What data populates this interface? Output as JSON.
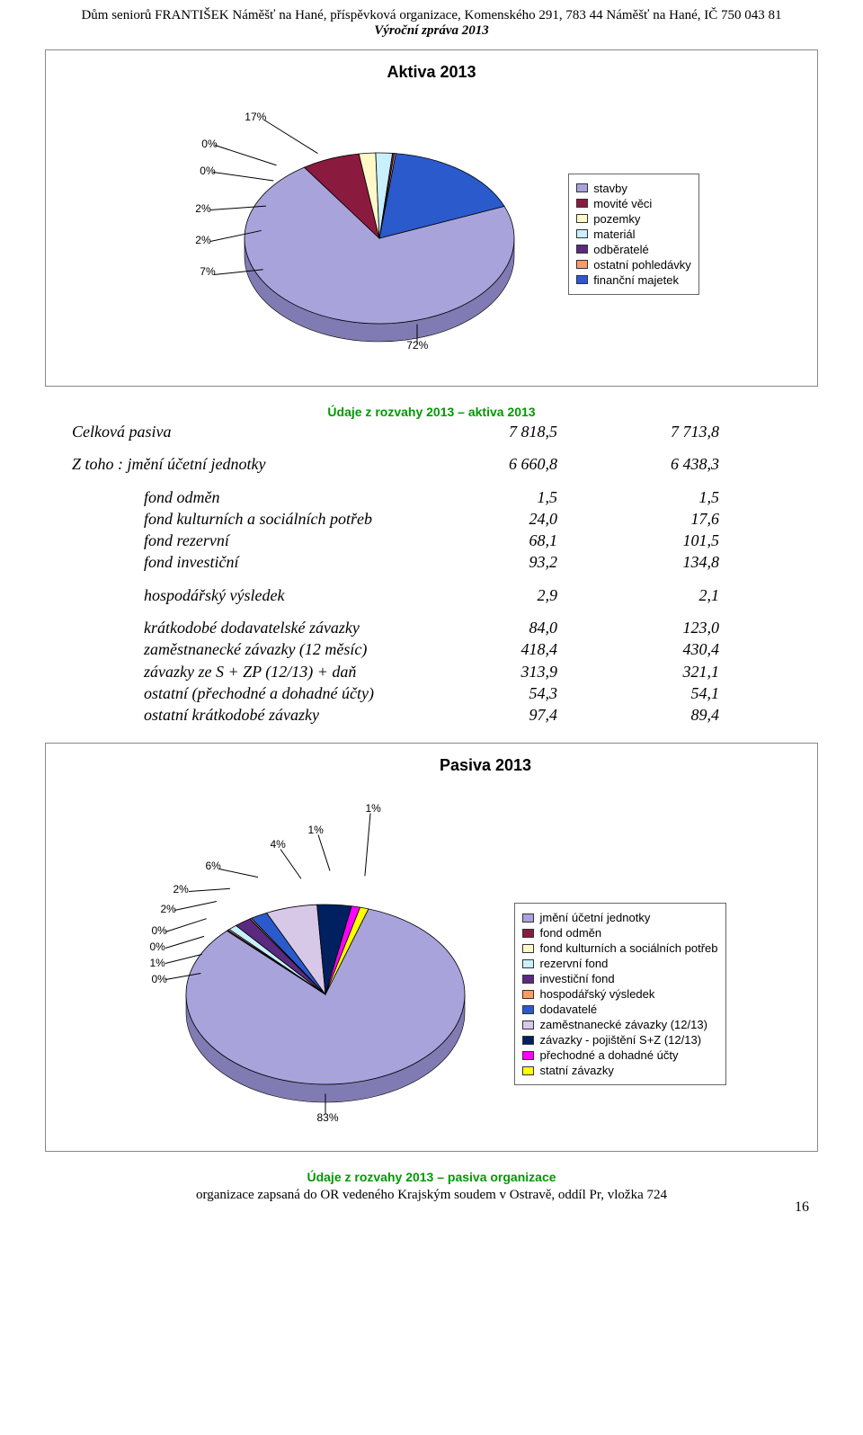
{
  "header": {
    "line1": "Dům seniorů FRANTIŠEK Náměšť na Hané, příspěvková organizace, Komenského 291, 783 44 Náměšť na Hané, IČ 750 043 81",
    "line2": "Výroční zpráva 2013"
  },
  "aktiva_chart": {
    "title": "Aktiva 2013",
    "type": "pie",
    "slices": [
      {
        "label": "stavby",
        "pct": 72,
        "color": "#a9a3db",
        "callout": "72%"
      },
      {
        "label": "movité věci",
        "pct": 7,
        "color": "#8b1a3f",
        "callout": "7%"
      },
      {
        "label": "pozemky",
        "pct": 2,
        "color": "#fff9c8",
        "callout": "2%"
      },
      {
        "label": "materiál",
        "pct": 2,
        "color": "#c8f0ff",
        "callout": "2%"
      },
      {
        "label": "odběratelé",
        "pct": 0,
        "color": "#5a2a80",
        "callout": "0%"
      },
      {
        "label": "ostatní pohledávky",
        "pct": 0,
        "color": "#ff9a66",
        "callout": "0%"
      },
      {
        "label": "finanční majetek",
        "pct": 17,
        "color": "#2a5acc",
        "callout": "17%"
      }
    ],
    "pie_border": "#000000",
    "background": "#ffffff"
  },
  "section_heading_1": "Údaje z rozvahy 2013 – aktiva 2013",
  "table": {
    "rows": [
      {
        "label": "Celková pasiva",
        "v1": "7 818,5",
        "v2": "7 713,8",
        "italic": true
      },
      {
        "label": "Z toho :      jmění účetní jednotky",
        "v1": "6 660,8",
        "v2": "6 438,3",
        "italic": true,
        "gap": true
      },
      {
        "label": "fond odměn",
        "v1": "1,5",
        "v2": "1,5",
        "italic": true,
        "indent": true,
        "gap": true
      },
      {
        "label": "fond kulturních a sociálních potřeb",
        "v1": "24,0",
        "v2": "17,6",
        "italic": true,
        "indent": true
      },
      {
        "label": "fond rezervní",
        "v1": "68,1",
        "v2": "101,5",
        "italic": true,
        "indent": true
      },
      {
        "label": "fond investiční",
        "v1": "93,2",
        "v2": "134,8",
        "italic": true,
        "indent": true
      },
      {
        "label": "hospodářský výsledek",
        "v1": "2,9",
        "v2": "2,1",
        "italic": true,
        "indent": true,
        "gap": true
      },
      {
        "label": "krátkodobé dodavatelské  závazky",
        "v1": "84,0",
        "v2": "123,0",
        "italic": true,
        "indent": true,
        "gap": true
      },
      {
        "label": "zaměstnanecké závazky  (12 měsíc)",
        "v1": "418,4",
        "v2": "430,4",
        "italic": true,
        "indent": true
      },
      {
        "label": "závazky ze S + ZP (12/13) + daň",
        "v1": "313,9",
        "v2": "321,1",
        "italic": true,
        "indent": true
      },
      {
        "label": "ostatní (přechodné a dohadné účty)",
        "v1": "54,3",
        "v2": "54,1",
        "italic": true,
        "indent": true
      },
      {
        "label": "ostatní krátkodobé závazky",
        "v1": "97,4",
        "v2": "89,4",
        "italic": true,
        "indent": true
      }
    ]
  },
  "pasiva_chart": {
    "title": "Pasiva 2013",
    "type": "pie",
    "slices": [
      {
        "label": "jmění účetní jednotky",
        "pct": 83,
        "color": "#a9a3db",
        "callout": "83%"
      },
      {
        "label": "fond odměn",
        "pct": 0,
        "color": "#8b1a3f",
        "callout": "0%"
      },
      {
        "label": "fond kulturních a sociálních potřeb",
        "pct": 0,
        "color": "#fff9c8",
        "callout": "0%"
      },
      {
        "label": "rezervní fond",
        "pct": 1,
        "color": "#c8f0ff",
        "callout": "1%"
      },
      {
        "label": "investiční fond",
        "pct": 2,
        "color": "#5a2a80",
        "callout": "2%"
      },
      {
        "label": "hospodářský výsledek",
        "pct": 0,
        "color": "#ff9a66",
        "callout": "0%"
      },
      {
        "label": "dodavatelé",
        "pct": 2,
        "color": "#2a5acc",
        "callout": "2%"
      },
      {
        "label": "zaměstnanecké závazky (12/13)",
        "pct": 6,
        "color": "#d8c8e8",
        "callout": "6%"
      },
      {
        "label": "závazky - pojištění S+Z (12/13)",
        "pct": 4,
        "color": "#002060",
        "callout": "4%"
      },
      {
        "label": "přechodné a dohadné účty",
        "pct": 1,
        "color": "#ff00ff",
        "callout": "1%"
      },
      {
        "label": "statní závazky",
        "pct": 1,
        "color": "#ffff00",
        "callout": "1%"
      }
    ],
    "pie_border": "#000000",
    "background": "#ffffff"
  },
  "footer": {
    "green": "Údaje z rozvahy 2013 – pasiva organizace",
    "sub": "organizace zapsaná do OR vedeného Krajským soudem v Ostravě, oddíl Pr, vložka 724",
    "page_num": "16"
  }
}
